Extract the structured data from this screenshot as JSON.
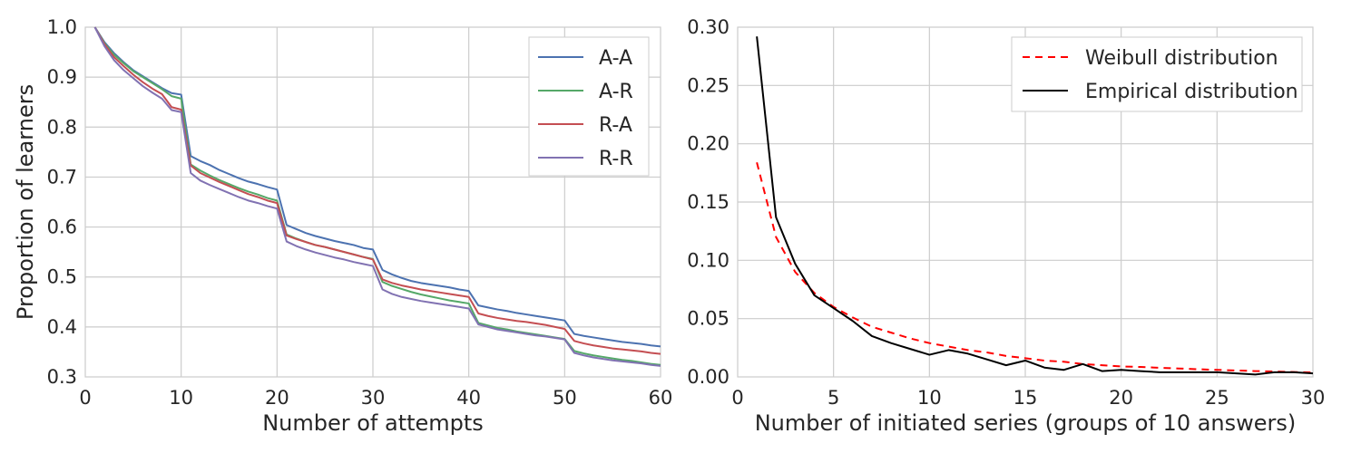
{
  "chart_data": [
    {
      "type": "line",
      "xlabel": "Number of attempts",
      "ylabel": "Proportion of learners",
      "xlim": [
        0,
        60
      ],
      "ylim": [
        0.3,
        1.0
      ],
      "x_ticks": [
        0,
        10,
        20,
        30,
        40,
        50,
        60
      ],
      "x_tick_labels": [
        "0",
        "10",
        "20",
        "30",
        "40",
        "50",
        "60"
      ],
      "y_ticks": [
        0.3,
        0.4,
        0.5,
        0.6,
        0.7,
        0.8,
        0.9,
        1.0
      ],
      "y_tick_labels": [
        "0.3",
        "0.4",
        "0.5",
        "0.6",
        "0.7",
        "0.8",
        "0.9",
        "1.0"
      ],
      "grid": true,
      "legend_position": "top-right",
      "x": [
        1,
        2,
        3,
        4,
        5,
        6,
        7,
        8,
        9,
        10,
        11,
        12,
        13,
        14,
        15,
        16,
        17,
        18,
        19,
        20,
        21,
        22,
        23,
        24,
        25,
        26,
        27,
        28,
        29,
        30,
        31,
        32,
        33,
        34,
        35,
        36,
        37,
        38,
        39,
        40,
        41,
        42,
        43,
        44,
        45,
        46,
        47,
        48,
        49,
        50,
        51,
        52,
        53,
        54,
        55,
        56,
        57,
        58,
        59,
        60
      ],
      "series": [
        {
          "name": "A-A",
          "color": "#4c72b0",
          "values": [
            1.0,
            0.97,
            0.948,
            0.93,
            0.914,
            0.902,
            0.89,
            0.878,
            0.868,
            0.865,
            0.742,
            0.732,
            0.724,
            0.714,
            0.706,
            0.698,
            0.691,
            0.686,
            0.68,
            0.675,
            0.604,
            0.596,
            0.588,
            0.582,
            0.577,
            0.572,
            0.568,
            0.564,
            0.558,
            0.555,
            0.514,
            0.505,
            0.498,
            0.492,
            0.488,
            0.485,
            0.482,
            0.479,
            0.475,
            0.472,
            0.443,
            0.439,
            0.435,
            0.432,
            0.428,
            0.425,
            0.422,
            0.419,
            0.416,
            0.413,
            0.386,
            0.382,
            0.379,
            0.376,
            0.373,
            0.37,
            0.368,
            0.366,
            0.363,
            0.361
          ]
        },
        {
          "name": "A-R",
          "color": "#55a868",
          "values": [
            1.0,
            0.968,
            0.945,
            0.928,
            0.912,
            0.9,
            0.888,
            0.876,
            0.862,
            0.857,
            0.725,
            0.713,
            0.703,
            0.694,
            0.686,
            0.678,
            0.671,
            0.665,
            0.658,
            0.653,
            0.585,
            0.577,
            0.57,
            0.564,
            0.56,
            0.555,
            0.55,
            0.545,
            0.54,
            0.536,
            0.49,
            0.482,
            0.476,
            0.47,
            0.465,
            0.461,
            0.457,
            0.453,
            0.45,
            0.447,
            0.408,
            0.403,
            0.398,
            0.395,
            0.391,
            0.388,
            0.385,
            0.382,
            0.379,
            0.376,
            0.352,
            0.347,
            0.343,
            0.34,
            0.337,
            0.334,
            0.332,
            0.329,
            0.326,
            0.324
          ]
        },
        {
          "name": "R-A",
          "color": "#c44e52",
          "values": [
            1.0,
            0.966,
            0.94,
            0.922,
            0.905,
            0.89,
            0.877,
            0.866,
            0.84,
            0.835,
            0.723,
            0.708,
            0.699,
            0.69,
            0.682,
            0.674,
            0.666,
            0.66,
            0.653,
            0.648,
            0.583,
            0.576,
            0.57,
            0.564,
            0.56,
            0.555,
            0.55,
            0.545,
            0.54,
            0.535,
            0.495,
            0.488,
            0.483,
            0.479,
            0.475,
            0.472,
            0.469,
            0.466,
            0.463,
            0.46,
            0.427,
            0.422,
            0.418,
            0.415,
            0.412,
            0.41,
            0.407,
            0.404,
            0.4,
            0.396,
            0.372,
            0.367,
            0.363,
            0.36,
            0.357,
            0.355,
            0.353,
            0.351,
            0.348,
            0.346
          ]
        },
        {
          "name": "R-R",
          "color": "#8172b2",
          "values": [
            1.0,
            0.962,
            0.934,
            0.914,
            0.898,
            0.882,
            0.869,
            0.857,
            0.834,
            0.83,
            0.708,
            0.693,
            0.684,
            0.676,
            0.668,
            0.66,
            0.653,
            0.648,
            0.642,
            0.637,
            0.571,
            0.562,
            0.555,
            0.549,
            0.544,
            0.539,
            0.535,
            0.53,
            0.526,
            0.522,
            0.475,
            0.466,
            0.46,
            0.456,
            0.452,
            0.449,
            0.446,
            0.443,
            0.44,
            0.437,
            0.405,
            0.4,
            0.395,
            0.392,
            0.389,
            0.386,
            0.383,
            0.381,
            0.378,
            0.375,
            0.348,
            0.343,
            0.339,
            0.336,
            0.333,
            0.331,
            0.329,
            0.327,
            0.324,
            0.322
          ]
        }
      ]
    },
    {
      "type": "line",
      "xlabel": "Number of initiated series (groups of 10 answers)",
      "ylabel": "",
      "xlim": [
        0,
        30
      ],
      "ylim": [
        0.0,
        0.3
      ],
      "x_ticks": [
        0,
        5,
        10,
        15,
        20,
        25,
        30
      ],
      "x_tick_labels": [
        "0",
        "5",
        "10",
        "15",
        "20",
        "25",
        "30"
      ],
      "y_ticks": [
        0.0,
        0.05,
        0.1,
        0.15,
        0.2,
        0.25,
        0.3
      ],
      "y_tick_labels": [
        "0.00",
        "0.05",
        "0.10",
        "0.15",
        "0.20",
        "0.25",
        "0.30"
      ],
      "grid": true,
      "legend_position": "top-right",
      "series": [
        {
          "name": "Weibull distribution",
          "color": "#ff0000",
          "style": "dashed",
          "x": [
            1,
            2,
            3,
            4,
            5,
            6,
            7,
            8,
            9,
            10,
            11,
            12,
            13,
            14,
            15,
            16,
            17,
            18,
            19,
            20,
            21,
            22,
            23,
            24,
            25,
            26,
            27,
            28,
            29,
            30
          ],
          "values": [
            0.184,
            0.12,
            0.09,
            0.072,
            0.06,
            0.051,
            0.043,
            0.038,
            0.033,
            0.029,
            0.026,
            0.023,
            0.021,
            0.018,
            0.016,
            0.014,
            0.013,
            0.011,
            0.01,
            0.009,
            0.0085,
            0.0078,
            0.0072,
            0.0066,
            0.006,
            0.0055,
            0.005,
            0.0046,
            0.0042,
            0.0038
          ]
        },
        {
          "name": "Empirical distribution",
          "color": "#000000",
          "style": "solid",
          "x": [
            1,
            2,
            3,
            4,
            5,
            6,
            7,
            8,
            9,
            10,
            11,
            12,
            13,
            14,
            15,
            16,
            17,
            18,
            19,
            20,
            21,
            22,
            23,
            24,
            25,
            26,
            27,
            28,
            29,
            30
          ],
          "values": [
            0.292,
            0.137,
            0.097,
            0.07,
            0.059,
            0.048,
            0.035,
            0.029,
            0.024,
            0.019,
            0.023,
            0.02,
            0.015,
            0.01,
            0.014,
            0.008,
            0.006,
            0.011,
            0.005,
            0.006,
            0.005,
            0.004,
            0.004,
            0.004,
            0.004,
            0.003,
            0.002,
            0.004,
            0.004,
            0.003
          ]
        }
      ]
    }
  ]
}
